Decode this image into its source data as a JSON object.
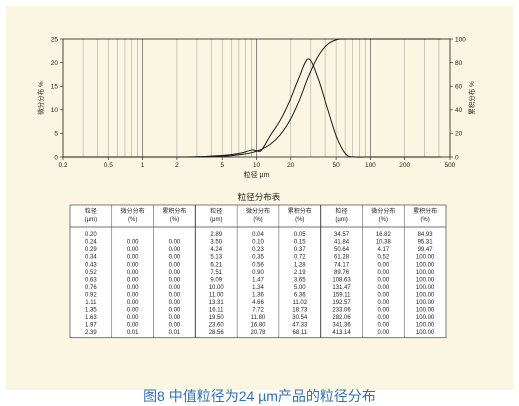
{
  "chart_data": [
    {
      "type": "line",
      "x_scale": "log",
      "xlim": [
        0.2,
        500
      ],
      "x_ticks": [
        "0.2",
        "0.5",
        "1",
        "2",
        "5",
        "10",
        "20",
        "50",
        "100",
        "200",
        "500"
      ],
      "ylim_left": [
        0,
        25
      ],
      "y_ticks_left": [
        "0",
        "5",
        "10",
        "15",
        "20",
        "25"
      ],
      "ylim_right": [
        0,
        100
      ],
      "y_ticks_right": [
        "0",
        "20",
        "40",
        "60",
        "80",
        "100"
      ],
      "xlabel": "粒径 µm",
      "ylabel_left": "微分分布 %",
      "ylabel_right": "累积分布 %",
      "grid": true,
      "series": [
        {
          "axis": "left",
          "x": [
            0.2,
            0.24,
            0.29,
            0.34,
            0.43,
            0.52,
            0.63,
            0.76,
            0.92,
            1.11,
            1.35,
            1.63,
            1.97,
            2.39,
            2.89,
            3.5,
            4.24,
            5.13,
            6.21,
            7.51,
            9.09,
            10.0,
            11.0,
            13.31,
            16.11,
            19.5,
            23.6,
            28.56,
            34.57,
            41.84,
            50.64,
            61.28,
            74.17,
            89.76,
            108.63,
            131.47,
            159.11,
            192.57,
            233.06,
            282.06,
            341.36,
            413.14
          ],
          "values": [
            0,
            0,
            0,
            0,
            0,
            0,
            0,
            0,
            0,
            0,
            0,
            0,
            0,
            0.01,
            0.04,
            0.1,
            0.23,
            0.35,
            0.56,
            0.9,
            1.47,
            1.34,
            1.36,
            4.66,
            7.72,
            11.8,
            16.8,
            20.78,
            16.82,
            10.38,
            4.17,
            0.52,
            0,
            0,
            0,
            0,
            0,
            0,
            0,
            0,
            0,
            0
          ]
        },
        {
          "axis": "right",
          "x": [
            0.2,
            0.24,
            0.29,
            0.34,
            0.43,
            0.52,
            0.63,
            0.76,
            0.92,
            1.11,
            1.35,
            1.63,
            1.97,
            2.39,
            2.89,
            3.5,
            4.24,
            5.13,
            6.21,
            7.51,
            9.09,
            10.0,
            11.0,
            13.31,
            16.11,
            19.5,
            23.6,
            28.56,
            34.57,
            41.84,
            50.64,
            61.28,
            74.17,
            89.76,
            108.63,
            131.47,
            159.11,
            192.57,
            233.06,
            282.06,
            341.36,
            413.14
          ],
          "values": [
            0,
            0,
            0,
            0,
            0,
            0,
            0,
            0,
            0,
            0,
            0,
            0,
            0,
            0.01,
            0.05,
            0.15,
            0.37,
            0.72,
            1.28,
            2.19,
            3.65,
            5.0,
            6.36,
            11.02,
            18.73,
            30.54,
            47.33,
            68.11,
            84.93,
            95.31,
            99.47,
            100.0,
            100.0,
            100.0,
            100.0,
            100.0,
            100.0,
            100.0,
            100.0,
            100.0,
            100.0,
            100.0
          ]
        }
      ]
    },
    {
      "type": "table",
      "title": "粒径分布表",
      "headers": [
        "粒径\n(µm)",
        "微分分布\n(%)",
        "累积分布\n(%)",
        "粒径\n(µm)",
        "微分分布\n(%)",
        "累积分布\n(%)",
        "粒径\n(µm)",
        "微分分布\n(%)",
        "累积分布\n(%)"
      ],
      "rows": [
        [
          "0.20",
          "",
          "",
          "2.89",
          "0.04",
          "0.05",
          "34.57",
          "16.82",
          "84.93"
        ],
        [
          "0.24",
          "0.00",
          "0.00",
          "3.50",
          "0.10",
          "0.15",
          "41.84",
          "10.38",
          "95.31"
        ],
        [
          "0.29",
          "0.00",
          "0.00",
          "4.24",
          "0.23",
          "0.37",
          "50.64",
          "4.17",
          "99.47"
        ],
        [
          "0.34",
          "0.00",
          "0.00",
          "5.13",
          "0.35",
          "0.72",
          "61.28",
          "0.52",
          "100.00"
        ],
        [
          "0.43",
          "0.00",
          "0.00",
          "6.21",
          "0.56",
          "1.28",
          "74.17",
          "0.00",
          "100.00"
        ],
        [
          "0.52",
          "0.00",
          "0.00",
          "7.51",
          "0.90",
          "2.19",
          "89.76",
          "0.00",
          "100.00"
        ],
        [
          "0.63",
          "0.00",
          "0.00",
          "9.09",
          "1.47",
          "3.65",
          "108.63",
          "0.00",
          "100.00"
        ],
        [
          "0.76",
          "0.00",
          "0.00",
          "10.00",
          "1.34",
          "5.00",
          "131.47",
          "0.00",
          "100.00"
        ],
        [
          "0.92",
          "0.00",
          "0.00",
          "11.00",
          "1.36",
          "6.36",
          "159.11",
          "0.00",
          "100.00"
        ],
        [
          "1.11",
          "0.00",
          "0.00",
          "13.31",
          "4.66",
          "11.02",
          "192.57",
          "0.00",
          "100.00"
        ],
        [
          "1.35",
          "0.00",
          "0.00",
          "16.11",
          "7.72",
          "18.73",
          "233.06",
          "0.00",
          "100.00"
        ],
        [
          "1.63",
          "0.00",
          "0.00",
          "19.50",
          "11.80",
          "30.54",
          "282.06",
          "0.00",
          "100.00"
        ],
        [
          "1.97",
          "0.00",
          "0.00",
          "23.60",
          "16.80",
          "47.33",
          "341.36",
          "0.00",
          "100.00"
        ],
        [
          "2.39",
          "0.01",
          "0.01",
          "28.56",
          "20.78",
          "68.11",
          "413.14",
          "0.00",
          "100.00"
        ]
      ]
    }
  ],
  "caption": "图8 中值粒径为24 µm产品的粒径分布"
}
